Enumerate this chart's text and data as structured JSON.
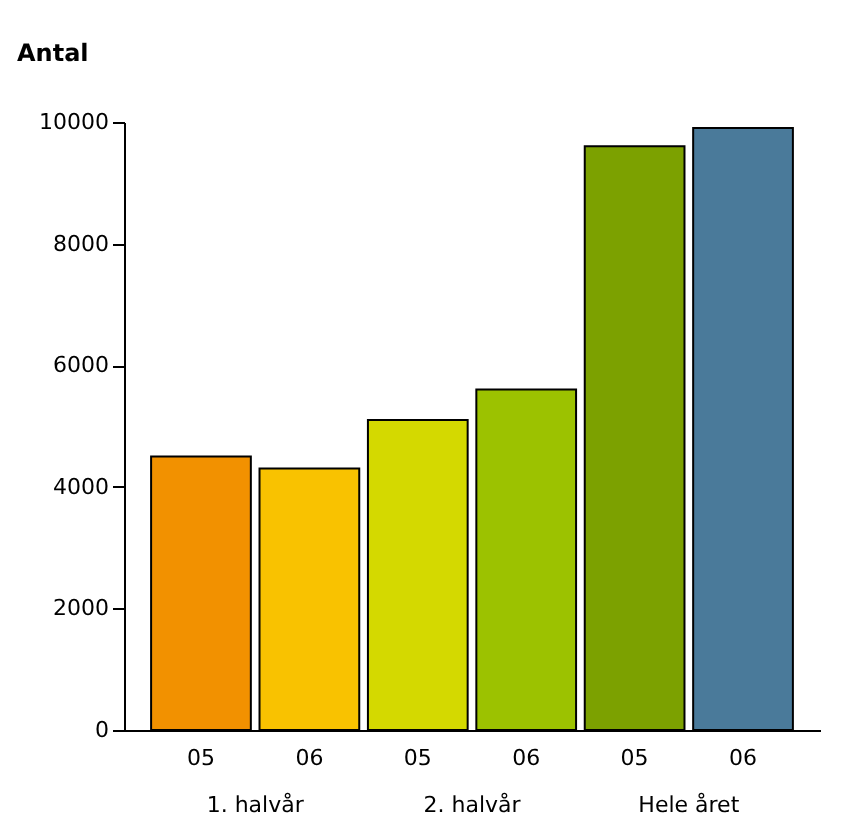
{
  "chart_data": {
    "type": "bar",
    "ylabel": "Antal",
    "categories": [
      "05",
      "06",
      "05",
      "06",
      "05",
      "06"
    ],
    "values": [
      4500,
      4300,
      5100,
      5600,
      9600,
      9900
    ],
    "colors": [
      "#f29100",
      "#f9c200",
      "#d4d900",
      "#9cc200",
      "#7ca100",
      "#4a7a9a"
    ],
    "annotations": [
      "1. halvår",
      "2. halvår",
      "Hele året"
    ],
    "ylim": [
      0,
      10000
    ],
    "yticks": [
      0,
      2000,
      4000,
      6000,
      8000,
      10000
    ],
    "grid": false
  }
}
